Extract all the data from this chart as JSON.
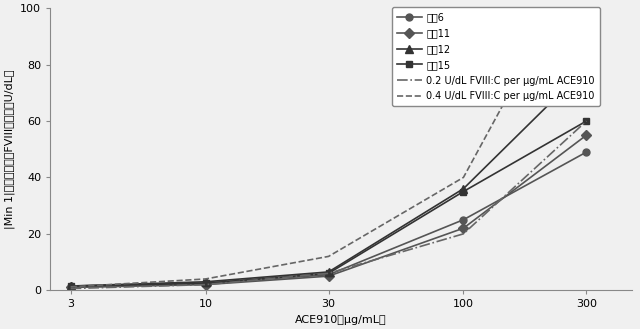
{
  "x": [
    3,
    10,
    30,
    100,
    300
  ],
  "series": [
    {
      "label": "試蕂6",
      "y": [
        1.0,
        2.5,
        5.5,
        25.0,
        49.0
      ],
      "color": "#555555",
      "marker": "o",
      "linestyle": "-",
      "markersize": 5
    },
    {
      "label": "試蔤11",
      "y": [
        1.0,
        2.0,
        5.0,
        22.0,
        55.0
      ],
      "color": "#555555",
      "marker": "D",
      "linestyle": "-",
      "markersize": 5
    },
    {
      "label": "試蔤12",
      "y": [
        1.5,
        3.0,
        6.5,
        36.0,
        79.0
      ],
      "color": "#333333",
      "marker": "^",
      "linestyle": "-",
      "markersize": 6
    },
    {
      "label": "試蔤15",
      "y": [
        1.5,
        2.5,
        6.0,
        35.0,
        60.0
      ],
      "color": "#333333",
      "marker": "s",
      "linestyle": "-",
      "markersize": 5
    },
    {
      "label": "0.2 U/dL FVIII:C per μg/mL ACE910",
      "y": [
        0.6,
        2.0,
        6.0,
        20.0,
        60.0
      ],
      "color": "#666666",
      "marker": "None",
      "linestyle": "-.",
      "markersize": 0
    },
    {
      "label": "0.4 U/dL FVIII:C per μg/mL ACE910",
      "y": [
        1.2,
        4.0,
        12.0,
        40.0,
        120.0
      ],
      "color": "#666666",
      "marker": "None",
      "linestyle": "--",
      "markersize": 0
    }
  ],
  "xlabel": "ACE910（μg/mL）",
  "ylabel": "|Min 1|から換算したFVIII活性値（U/dL）",
  "xlim_log": [
    2.5,
    450
  ],
  "ylim": [
    0,
    100
  ],
  "yticks": [
    0,
    20,
    40,
    60,
    80,
    100
  ],
  "xticks": [
    3,
    10,
    30,
    100,
    300
  ],
  "xticklabels": [
    "3",
    "10",
    "30",
    "100",
    "300"
  ],
  "background_color": "#f0f0f0",
  "legend_fontsize": 7.0,
  "axis_label_fontsize": 8,
  "tick_fontsize": 8,
  "linewidth": 1.2
}
